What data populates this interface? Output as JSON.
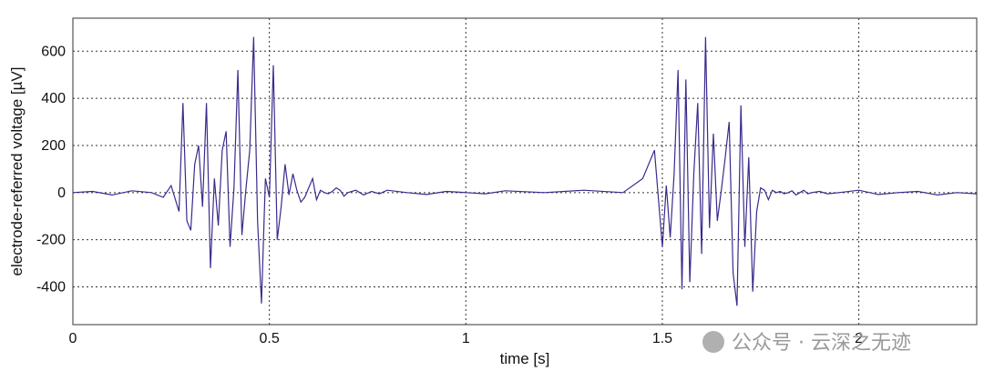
{
  "chart_data": {
    "type": "line",
    "title": "",
    "xlabel": "time [s]",
    "ylabel": "electrode-referred voltage [µV]",
    "xlim": [
      0,
      2.3
    ],
    "ylim": [
      -560,
      740
    ],
    "xticks": [
      0,
      0.5,
      1,
      1.5,
      2
    ],
    "xtick_labels": [
      "0",
      "0.5",
      "1",
      "1.5",
      "2"
    ],
    "yticks": [
      -400,
      -200,
      0,
      200,
      400,
      600
    ],
    "ytick_labels": [
      "-400",
      "-200",
      "0",
      "200",
      "400",
      "600"
    ],
    "grid": true,
    "grid_style": "dotted",
    "line_color": "#3b2a8c",
    "series": [
      {
        "name": "",
        "x": [
          0,
          0.05,
          0.1,
          0.15,
          0.2,
          0.23,
          0.25,
          0.27,
          0.28,
          0.29,
          0.3,
          0.31,
          0.32,
          0.33,
          0.34,
          0.35,
          0.36,
          0.37,
          0.38,
          0.39,
          0.4,
          0.41,
          0.42,
          0.43,
          0.44,
          0.45,
          0.46,
          0.47,
          0.48,
          0.49,
          0.5,
          0.51,
          0.52,
          0.53,
          0.54,
          0.55,
          0.56,
          0.57,
          0.58,
          0.59,
          0.6,
          0.61,
          0.62,
          0.63,
          0.64,
          0.65,
          0.66,
          0.67,
          0.68,
          0.69,
          0.7,
          0.72,
          0.74,
          0.76,
          0.78,
          0.8,
          0.85,
          0.9,
          0.95,
          1.0,
          1.05,
          1.1,
          1.2,
          1.3,
          1.4,
          1.45,
          1.48,
          1.5,
          1.51,
          1.52,
          1.53,
          1.54,
          1.55,
          1.56,
          1.57,
          1.58,
          1.59,
          1.6,
          1.61,
          1.62,
          1.63,
          1.64,
          1.65,
          1.66,
          1.67,
          1.68,
          1.69,
          1.7,
          1.71,
          1.72,
          1.73,
          1.74,
          1.75,
          1.76,
          1.77,
          1.78,
          1.79,
          1.8,
          1.81,
          1.82,
          1.83,
          1.84,
          1.85,
          1.86,
          1.87,
          1.88,
          1.9,
          1.92,
          1.95,
          2.0,
          2.05,
          2.1,
          2.15,
          2.2,
          2.25,
          2.3
        ],
        "values": [
          0,
          5,
          -10,
          8,
          0,
          -20,
          30,
          -80,
          380,
          -120,
          -160,
          120,
          200,
          -60,
          380,
          -320,
          60,
          -140,
          180,
          260,
          -230,
          20,
          520,
          -180,
          10,
          180,
          660,
          -120,
          -470,
          60,
          -20,
          540,
          -200,
          -60,
          120,
          -10,
          80,
          10,
          -40,
          -20,
          20,
          60,
          -30,
          10,
          0,
          -5,
          5,
          20,
          10,
          -15,
          0,
          10,
          -10,
          5,
          -5,
          10,
          0,
          -8,
          5,
          0,
          -5,
          8,
          0,
          10,
          0,
          60,
          180,
          -230,
          30,
          -190,
          80,
          520,
          -410,
          480,
          -380,
          80,
          380,
          -260,
          660,
          -150,
          250,
          -120,
          10,
          150,
          300,
          -340,
          -480,
          370,
          -230,
          150,
          -420,
          -80,
          20,
          10,
          -30,
          10,
          0,
          5,
          -5,
          0,
          8,
          -10,
          0,
          10,
          -5,
          0,
          5,
          -5,
          0,
          10,
          -8,
          0,
          5,
          -10,
          0,
          -5
        ]
      }
    ]
  },
  "watermark": "公众号 · 云深之无迹"
}
